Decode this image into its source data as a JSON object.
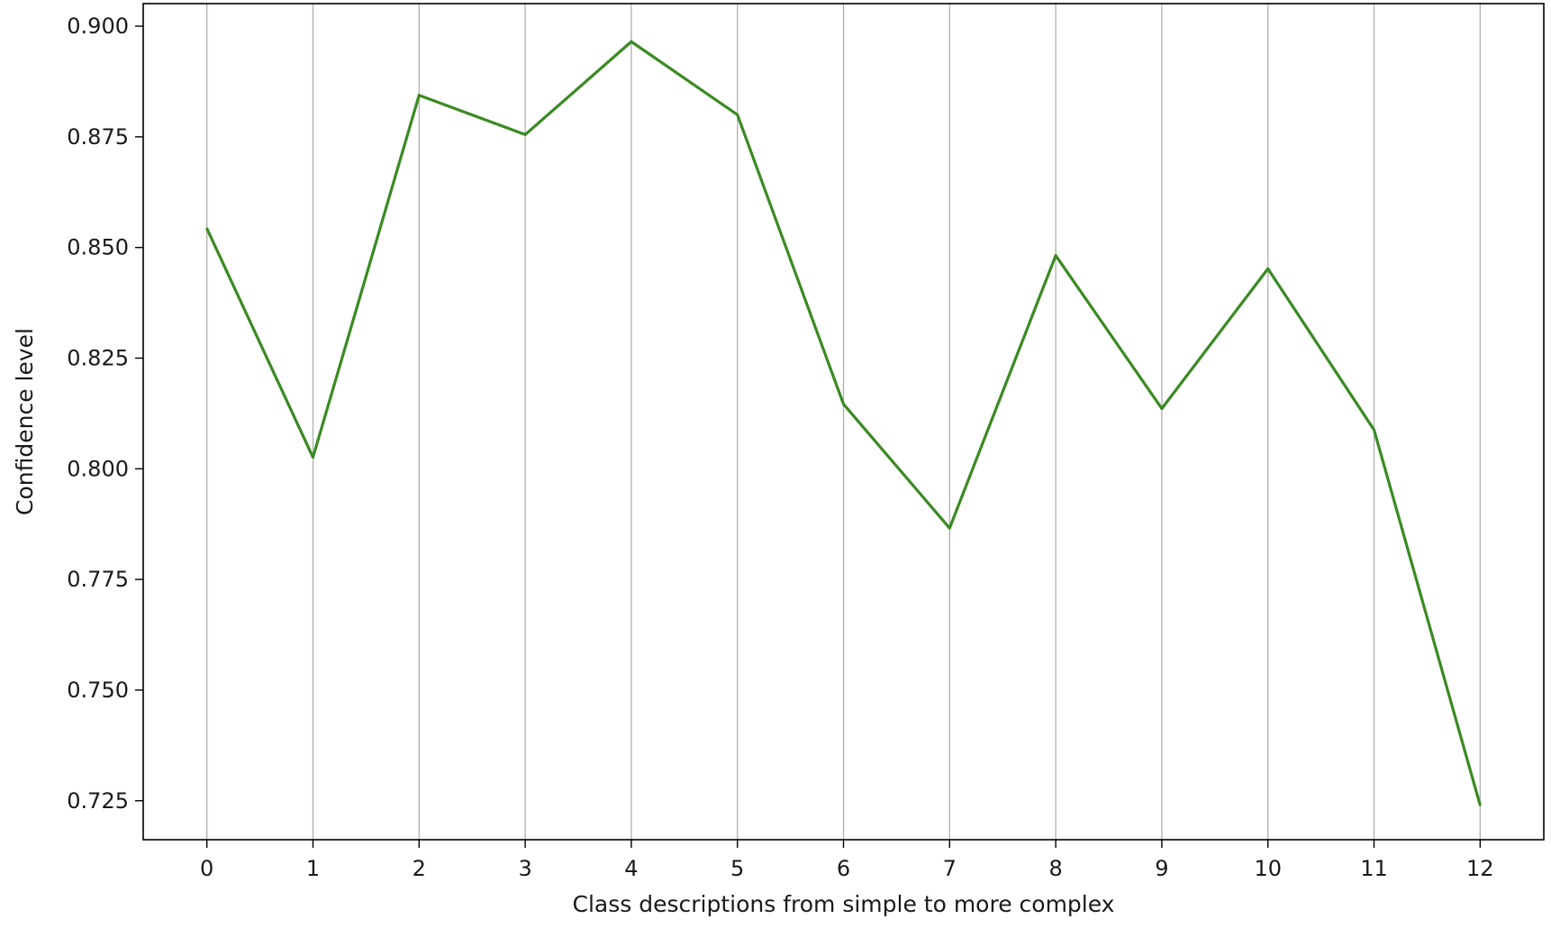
{
  "chart_data": {
    "type": "line",
    "title": "",
    "xlabel": "Class descriptions from simple to more complex",
    "ylabel": "Confidence level",
    "x": [
      0,
      1,
      2,
      3,
      4,
      5,
      6,
      7,
      8,
      9,
      10,
      11,
      12
    ],
    "x_ticks": [
      "0",
      "1",
      "2",
      "3",
      "4",
      "5",
      "6",
      "7",
      "8",
      "9",
      "10",
      "11",
      "12"
    ],
    "y_ticks": [
      "0.725",
      "0.750",
      "0.775",
      "0.800",
      "0.825",
      "0.850",
      "0.875",
      "0.900"
    ],
    "xlim": [
      -0.6,
      12.6
    ],
    "ylim": [
      0.7162,
      0.9051
    ],
    "grid": {
      "x": true,
      "y": false
    },
    "legend": "none",
    "series": [
      {
        "color": "#3a8a22",
        "values": [
          0.8543,
          0.8026,
          0.8844,
          0.8755,
          0.8965,
          0.88,
          0.8146,
          0.7866,
          0.8482,
          0.8136,
          0.8452,
          0.8088,
          0.724
        ]
      }
    ]
  }
}
